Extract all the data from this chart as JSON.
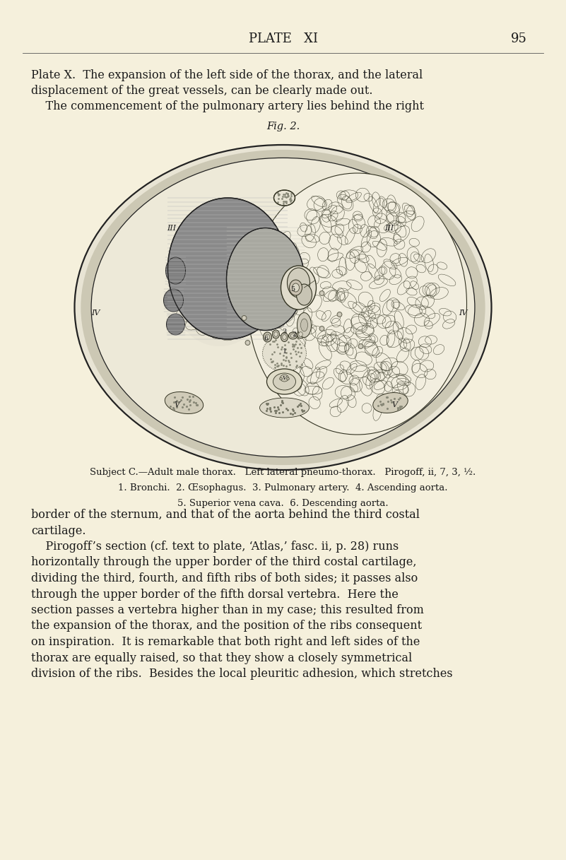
{
  "background_color": "#f5f0dc",
  "page_width": 8.01,
  "page_height": 12.17,
  "header_title": "PLATE   XI",
  "header_page_num": "95",
  "header_fontsize": 13,
  "body_text_lines_top": [
    "Plate X.  The expansion of the left side of the thorax, and the lateral",
    "displacement of the great vessels, can be clearly made out.",
    "    The commencement of the pulmonary artery lies behind the right"
  ],
  "fig_label": "Fig. 2.",
  "caption_line1": "Subject C.—Adult male thorax.   Left lateral pneumo-thorax.   Pirogoff, ii, 7, 3, ½.",
  "caption_line2": "1. Bronchi.  2. Œsophagus.  3. Pulmonary artery.  4. Ascending aorta.",
  "caption_line3": "5. Superior vena cava.  6. Descending aorta.",
  "body_text_lines_bottom": [
    "border of the sternum, and that of the aorta behind the third costal",
    "cartilage.",
    "    Pirogoff’s section (cf. text to plate, ‘Atlas,’ fasc. ii, p. 28) runs",
    "horizontally through the upper border of the third costal cartilage,",
    "dividing the third, fourth, and fifth ribs of both sides; it passes also",
    "through the upper border of the fifth dorsal vertebra.  Here the",
    "section passes a vertebra higher than in my case; this resulted from",
    "the expansion of the thorax, and the position of the ribs consequent",
    "on inspiration.  It is remarkable that both right and left sides of the",
    "thorax are equally raised, so that they show a closely symmetrical",
    "division of the ribs.  Besides the local pleuritic adhesion, which stretches"
  ],
  "text_color": "#1a1a1a"
}
